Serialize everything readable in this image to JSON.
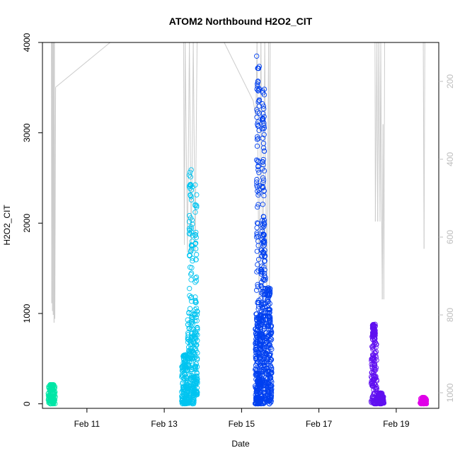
{
  "chart_data": {
    "type": "scatter",
    "title": "ATOM2 Northbound H2O2_CIT",
    "xlabel": "Date",
    "ylabel": "H2O2_CIT",
    "x_unit": "days (Feb)",
    "xlim": [
      9.85,
      20.1
    ],
    "ylim": [
      -50,
      4000
    ],
    "x_ticks": [
      {
        "value": 11,
        "label": "Feb 11"
      },
      {
        "value": 13,
        "label": "Feb 13"
      },
      {
        "value": 15,
        "label": "Feb 15"
      },
      {
        "value": 17,
        "label": "Feb 17"
      },
      {
        "value": 19,
        "label": "Feb 19"
      }
    ],
    "y_ticks": [
      {
        "value": 0,
        "label": "0"
      },
      {
        "value": 1000,
        "label": "1000"
      },
      {
        "value": 2000,
        "label": "2000"
      },
      {
        "value": 3000,
        "label": "3000"
      },
      {
        "value": 4000,
        "label": "4000"
      }
    ],
    "right_axis": {
      "reversed": true,
      "range": [
        100,
        1040
      ],
      "color": "#bdbdbd",
      "ticks": [
        {
          "value": 200,
          "label": "200"
        },
        {
          "value": 400,
          "label": "400"
        },
        {
          "value": 600,
          "label": "600"
        },
        {
          "value": 800,
          "label": "800"
        },
        {
          "value": 1000,
          "label": "1000"
        }
      ]
    },
    "pressure_trace": {
      "color": "#cccccc",
      "points": [
        [
          10.08,
          100
        ],
        [
          10.09,
          770
        ],
        [
          10.1,
          100
        ],
        [
          10.11,
          790
        ],
        [
          10.12,
          100
        ],
        [
          10.13,
          800
        ],
        [
          10.14,
          100
        ],
        [
          10.15,
          820
        ],
        [
          10.16,
          100
        ],
        [
          10.17,
          810
        ],
        [
          10.19,
          215
        ],
        [
          11.6,
          100
        ],
        [
          14.55,
          100
        ],
        [
          15.3,
          250
        ],
        [
          15.37,
          290
        ],
        [
          15.4,
          100
        ],
        [
          15.45,
          760
        ],
        [
          15.5,
          100
        ],
        [
          15.55,
          770
        ],
        [
          15.6,
          100
        ],
        [
          15.65,
          775
        ],
        [
          15.7,
          100
        ],
        [
          15.72,
          785
        ],
        [
          15.74,
          100
        ],
        [
          13.5,
          100
        ],
        [
          13.52,
          620
        ],
        [
          13.54,
          100
        ],
        [
          13.6,
          640
        ],
        [
          13.65,
          100
        ],
        [
          13.7,
          640
        ],
        [
          13.75,
          100
        ],
        [
          13.8,
          640
        ],
        [
          13.85,
          100
        ],
        [
          18.45,
          100
        ],
        [
          18.46,
          560
        ],
        [
          18.5,
          100
        ],
        [
          18.52,
          560
        ],
        [
          18.55,
          100
        ],
        [
          18.58,
          560
        ],
        [
          18.6,
          100
        ],
        [
          18.62,
          470
        ],
        [
          18.64,
          760
        ],
        [
          18.66,
          310
        ],
        [
          18.68,
          760
        ],
        [
          18.7,
          100
        ],
        [
          19.7,
          100
        ],
        [
          19.72,
          630
        ],
        [
          19.74,
          100
        ]
      ]
    },
    "series": [
      {
        "color": "#00e6a6",
        "flights": [
          {
            "x_range": [
              10.0,
              10.18
            ],
            "y_range": [
              0,
              210
            ],
            "count": 120,
            "peak": 210
          }
        ]
      },
      {
        "color": "#00c4f0",
        "flights": [
          {
            "x_range": [
              13.45,
              13.6
            ],
            "y_range": [
              0,
              520
            ],
            "count": 120,
            "peak": 540
          },
          {
            "x_range": [
              13.6,
              13.78
            ],
            "y_range": [
              0,
              1050
            ],
            "count": 160,
            "peak": 2650
          },
          {
            "x_range": [
              13.78,
              13.86
            ],
            "y_range": [
              100,
              1100
            ],
            "count": 80,
            "peak": 2500
          }
        ]
      },
      {
        "color": "#0040f0",
        "flights": [
          {
            "x_range": [
              15.35,
              15.5
            ],
            "y_range": [
              0,
              1000
            ],
            "count": 220,
            "peak": 3890
          },
          {
            "x_range": [
              15.5,
              15.62
            ],
            "y_range": [
              0,
              1800
            ],
            "count": 180,
            "peak": 3500
          },
          {
            "x_range": [
              15.62,
              15.78
            ],
            "y_range": [
              0,
              900
            ],
            "count": 150,
            "peak": 1300
          }
        ]
      },
      {
        "color": "#6010f0",
        "flights": [
          {
            "x_range": [
              18.35,
              18.5
            ],
            "y_range": [
              0,
              750
            ],
            "count": 130,
            "peak": 880
          },
          {
            "x_range": [
              18.5,
              18.68
            ],
            "y_range": [
              0,
              90
            ],
            "count": 90,
            "peak": 120
          }
        ]
      },
      {
        "color": "#e000e8",
        "flights": [
          {
            "x_range": [
              19.62,
              19.78
            ],
            "y_range": [
              0,
              60
            ],
            "count": 70,
            "peak": 70
          }
        ]
      }
    ]
  }
}
